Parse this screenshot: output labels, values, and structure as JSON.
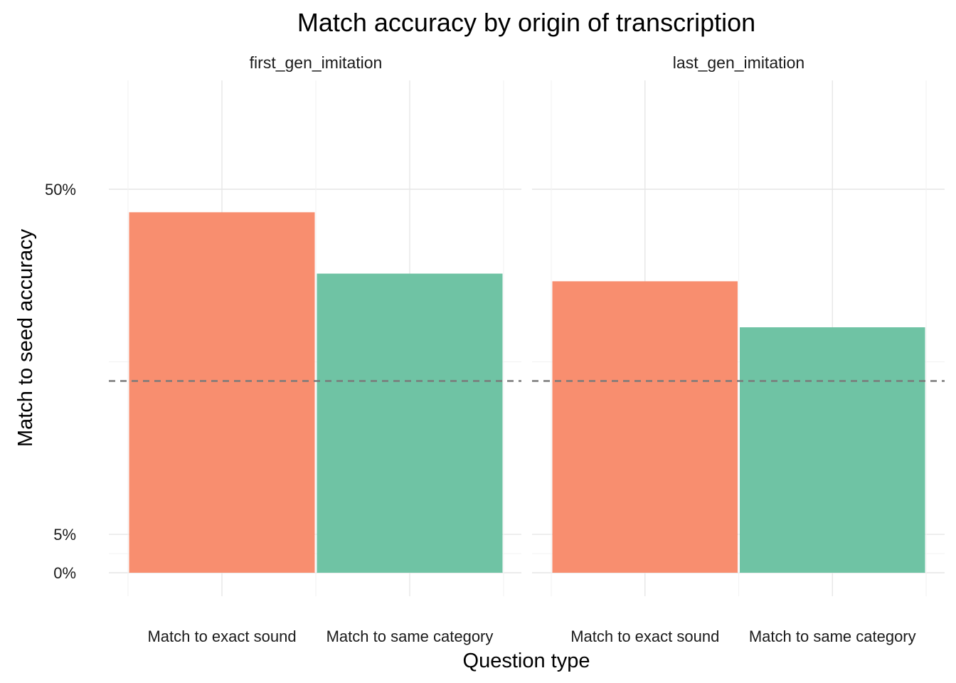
{
  "chart_data": {
    "type": "bar",
    "title": "Match accuracy by origin of transcription",
    "xlabel": "Question type",
    "ylabel": "Match to seed accuracy",
    "facets": [
      "first_gen_imitation",
      "last_gen_imitation"
    ],
    "categories": [
      "Match to exact sound",
      "Match to same category"
    ],
    "values": [
      [
        47,
        39
      ],
      [
        38,
        32
      ]
    ],
    "y_ticks": [
      {
        "value": 0,
        "label": "0%"
      },
      {
        "value": 5,
        "label": "5%"
      },
      {
        "value": 50,
        "label": "50%"
      }
    ],
    "ylim": [
      -3,
      64.5
    ],
    "reference_line": {
      "value": 25,
      "style": "dashed"
    },
    "grid": true,
    "legend": "none",
    "colors": {
      "Match to exact sound": "#f88e6f",
      "Match to same category": "#6fc3a4",
      "reference_line": "#7a7a7a",
      "grid_major": "#e6e6e6",
      "grid_minor": "#f3f3f3"
    }
  }
}
